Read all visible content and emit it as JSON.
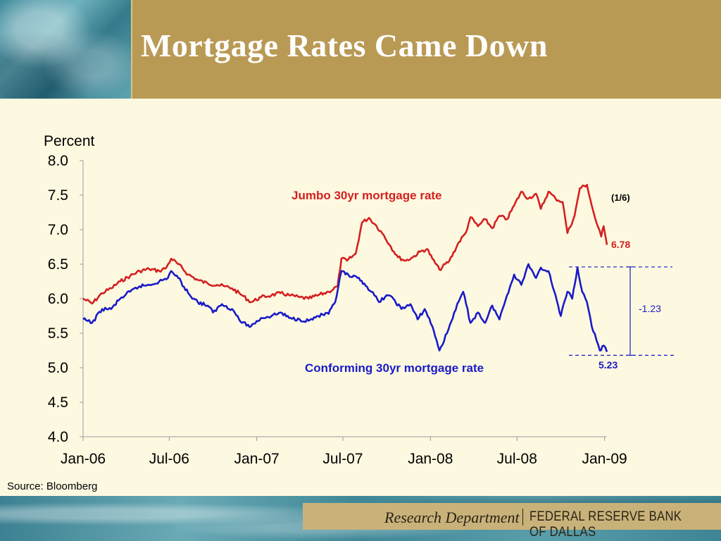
{
  "slide": {
    "title": "Mortgage Rates Came Down",
    "source": "Source: Bloomberg"
  },
  "footer": {
    "department": "Research Department",
    "bank": "FEDERAL RESERVE BANK OF DALLAS"
  },
  "colors": {
    "jumbo": "#d42020",
    "conforming": "#1a1ac8",
    "header_band": "#b99a55",
    "background": "#fdf9e1"
  },
  "chart_data": {
    "type": "line",
    "ylabel": "Percent",
    "ylim": [
      4.0,
      8.0
    ],
    "yticks": [
      "8.0",
      "7.5",
      "7.0",
      "6.5",
      "6.0",
      "5.5",
      "5.0",
      "4.5",
      "4.0"
    ],
    "xlim": [
      "2006-01-01",
      "2009-01-06"
    ],
    "xticks": [
      {
        "date": "2006-01-01",
        "label": "Jan-06"
      },
      {
        "date": "2006-07-01",
        "label": "Jul-06"
      },
      {
        "date": "2007-01-01",
        "label": "Jan-07"
      },
      {
        "date": "2007-07-01",
        "label": "Jul-07"
      },
      {
        "date": "2008-01-01",
        "label": "Jan-08"
      },
      {
        "date": "2008-07-01",
        "label": "Jul-08"
      },
      {
        "date": "2009-01-01",
        "label": "Jan-09"
      }
    ],
    "grid": false,
    "series": [
      {
        "name": "Jumbo 30yr mortgage rate",
        "color": "#d42020",
        "end_label": "6.78",
        "points": [
          [
            "2006-01-01",
            6.0
          ],
          [
            "2006-01-20",
            5.93
          ],
          [
            "2006-02-10",
            6.08
          ],
          [
            "2006-03-01",
            6.15
          ],
          [
            "2006-03-20",
            6.25
          ],
          [
            "2006-04-10",
            6.33
          ],
          [
            "2006-04-30",
            6.4
          ],
          [
            "2006-05-20",
            6.43
          ],
          [
            "2006-06-10",
            6.4
          ],
          [
            "2006-06-25",
            6.45
          ],
          [
            "2006-07-05",
            6.58
          ],
          [
            "2006-07-20",
            6.5
          ],
          [
            "2006-08-10",
            6.35
          ],
          [
            "2006-08-30",
            6.27
          ],
          [
            "2006-09-20",
            6.22
          ],
          [
            "2006-10-10",
            6.2
          ],
          [
            "2006-10-25",
            6.18
          ],
          [
            "2006-11-10",
            6.15
          ],
          [
            "2006-12-01",
            6.05
          ],
          [
            "2006-12-20",
            5.95
          ],
          [
            "2007-01-10",
            6.02
          ],
          [
            "2007-02-01",
            6.05
          ],
          [
            "2007-02-20",
            6.08
          ],
          [
            "2007-03-10",
            6.05
          ],
          [
            "2007-04-01",
            6.02
          ],
          [
            "2007-04-20",
            6.0
          ],
          [
            "2007-05-10",
            6.05
          ],
          [
            "2007-06-01",
            6.1
          ],
          [
            "2007-06-20",
            6.18
          ],
          [
            "2007-06-28",
            6.58
          ],
          [
            "2007-07-10",
            6.55
          ],
          [
            "2007-07-28",
            6.65
          ],
          [
            "2007-08-10",
            7.1
          ],
          [
            "2007-08-25",
            7.17
          ],
          [
            "2007-09-10",
            7.05
          ],
          [
            "2007-09-25",
            6.92
          ],
          [
            "2007-10-10",
            6.75
          ],
          [
            "2007-10-25",
            6.6
          ],
          [
            "2007-11-10",
            6.55
          ],
          [
            "2007-11-25",
            6.6
          ],
          [
            "2007-12-10",
            6.68
          ],
          [
            "2007-12-25",
            6.72
          ],
          [
            "2008-01-05",
            6.58
          ],
          [
            "2008-01-20",
            6.42
          ],
          [
            "2008-02-10",
            6.55
          ],
          [
            "2008-03-01",
            6.82
          ],
          [
            "2008-03-15",
            6.95
          ],
          [
            "2008-03-25",
            7.18
          ],
          [
            "2008-04-10",
            7.05
          ],
          [
            "2008-04-25",
            7.15
          ],
          [
            "2008-05-10",
            7.02
          ],
          [
            "2008-05-25",
            7.2
          ],
          [
            "2008-06-10",
            7.15
          ],
          [
            "2008-06-25",
            7.35
          ],
          [
            "2008-07-10",
            7.55
          ],
          [
            "2008-07-25",
            7.45
          ],
          [
            "2008-08-10",
            7.52
          ],
          [
            "2008-08-20",
            7.3
          ],
          [
            "2008-09-05",
            7.55
          ],
          [
            "2008-09-20",
            7.45
          ],
          [
            "2008-10-05",
            7.4
          ],
          [
            "2008-10-15",
            6.95
          ],
          [
            "2008-10-30",
            7.2
          ],
          [
            "2008-11-10",
            7.6
          ],
          [
            "2008-11-25",
            7.65
          ],
          [
            "2008-12-05",
            7.35
          ],
          [
            "2008-12-15",
            7.1
          ],
          [
            "2008-12-25",
            6.9
          ],
          [
            "2008-12-30",
            7.05
          ],
          [
            "2009-01-06",
            6.78
          ]
        ]
      },
      {
        "name": "Conforming 30yr mortgage rate",
        "color": "#1a1ac8",
        "end_label": "5.23",
        "points": [
          [
            "2006-01-01",
            5.7
          ],
          [
            "2006-01-20",
            5.65
          ],
          [
            "2006-02-10",
            5.85
          ],
          [
            "2006-03-01",
            5.85
          ],
          [
            "2006-03-20",
            6.0
          ],
          [
            "2006-04-10",
            6.1
          ],
          [
            "2006-04-30",
            6.18
          ],
          [
            "2006-05-20",
            6.2
          ],
          [
            "2006-06-10",
            6.25
          ],
          [
            "2006-06-25",
            6.28
          ],
          [
            "2006-07-05",
            6.4
          ],
          [
            "2006-07-20",
            6.3
          ],
          [
            "2006-08-10",
            6.08
          ],
          [
            "2006-08-30",
            5.95
          ],
          [
            "2006-09-20",
            5.9
          ],
          [
            "2006-10-01",
            5.8
          ],
          [
            "2006-10-20",
            5.92
          ],
          [
            "2006-11-10",
            5.85
          ],
          [
            "2006-12-01",
            5.65
          ],
          [
            "2006-12-20",
            5.6
          ],
          [
            "2007-01-10",
            5.72
          ],
          [
            "2007-02-01",
            5.75
          ],
          [
            "2007-02-20",
            5.8
          ],
          [
            "2007-03-10",
            5.72
          ],
          [
            "2007-04-01",
            5.7
          ],
          [
            "2007-04-20",
            5.68
          ],
          [
            "2007-05-10",
            5.75
          ],
          [
            "2007-06-01",
            5.78
          ],
          [
            "2007-06-15",
            5.95
          ],
          [
            "2007-06-28",
            6.4
          ],
          [
            "2007-07-15",
            6.32
          ],
          [
            "2007-08-01",
            6.3
          ],
          [
            "2007-08-15",
            6.22
          ],
          [
            "2007-08-30",
            6.1
          ],
          [
            "2007-09-15",
            5.95
          ],
          [
            "2007-10-01",
            6.05
          ],
          [
            "2007-10-15",
            6.0
          ],
          [
            "2007-11-01",
            5.85
          ],
          [
            "2007-11-20",
            5.92
          ],
          [
            "2007-12-05",
            5.7
          ],
          [
            "2007-12-20",
            5.85
          ],
          [
            "2008-01-05",
            5.6
          ],
          [
            "2008-01-20",
            5.25
          ],
          [
            "2008-02-05",
            5.5
          ],
          [
            "2008-02-20",
            5.8
          ],
          [
            "2008-03-10",
            6.1
          ],
          [
            "2008-03-25",
            5.65
          ],
          [
            "2008-04-10",
            5.8
          ],
          [
            "2008-04-25",
            5.65
          ],
          [
            "2008-05-10",
            5.9
          ],
          [
            "2008-05-25",
            5.7
          ],
          [
            "2008-06-10",
            6.05
          ],
          [
            "2008-06-25",
            6.35
          ],
          [
            "2008-07-10",
            6.2
          ],
          [
            "2008-07-25",
            6.5
          ],
          [
            "2008-08-10",
            6.3
          ],
          [
            "2008-08-20",
            6.45
          ],
          [
            "2008-09-05",
            6.4
          ],
          [
            "2008-09-20",
            6.05
          ],
          [
            "2008-10-01",
            5.75
          ],
          [
            "2008-10-15",
            6.1
          ],
          [
            "2008-10-25",
            6.0
          ],
          [
            "2008-11-05",
            6.45
          ],
          [
            "2008-11-15",
            6.1
          ],
          [
            "2008-11-25",
            5.95
          ],
          [
            "2008-12-05",
            5.6
          ],
          [
            "2008-12-15",
            5.4
          ],
          [
            "2008-12-22",
            5.25
          ],
          [
            "2008-12-30",
            5.32
          ],
          [
            "2009-01-06",
            5.23
          ]
        ]
      }
    ],
    "annotations": {
      "jumbo_label": "Jumbo 30yr mortgage rate",
      "conforming_label": "Conforming 30yr mortgage rate",
      "date_note": "(1/6)",
      "spread_label": "-1.23",
      "spread_from": 6.46,
      "spread_to": 5.18
    }
  }
}
